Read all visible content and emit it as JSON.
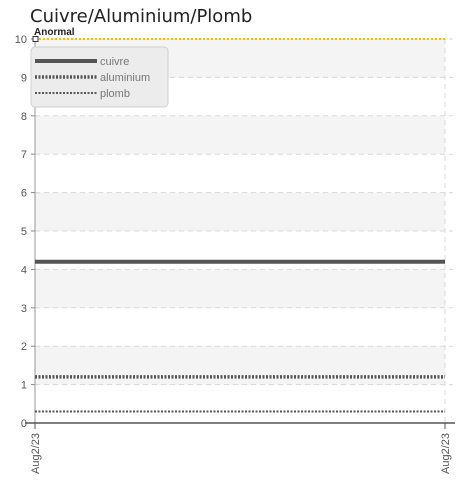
{
  "chart_data": {
    "type": "line",
    "title": "Cuivre/Aluminium/Plomb",
    "xlabel": "",
    "ylabel": "",
    "x": [
      "Aug2/23",
      "Aug2/23"
    ],
    "ylim": [
      0,
      10
    ],
    "yticks": [
      0,
      1,
      2,
      3,
      4,
      5,
      6,
      7,
      8,
      9,
      10
    ],
    "grid": true,
    "legend_position": "top-left",
    "series": [
      {
        "name": "cuivre",
        "values": [
          4.2,
          4.2
        ],
        "color": "#555555",
        "style": "solid"
      },
      {
        "name": "aluminium",
        "values": [
          1.2,
          1.2
        ],
        "color": "#555555",
        "style": "dotted-thick"
      },
      {
        "name": "plomb",
        "values": [
          0.3,
          0.3
        ],
        "color": "#555555",
        "style": "dotted"
      }
    ],
    "threshold": {
      "label": "Anormal",
      "value": 10,
      "color": "#f2c200"
    }
  }
}
